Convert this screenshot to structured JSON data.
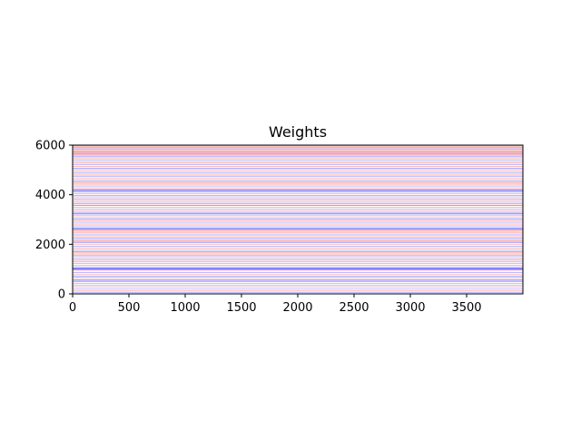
{
  "chart_data": {
    "type": "heatmap",
    "title": "Weights",
    "xlabel": "",
    "ylabel": "",
    "xlim": [
      0,
      4000
    ],
    "ylim": [
      6000,
      0
    ],
    "x_ticks": [
      0,
      500,
      1000,
      1500,
      2000,
      2500,
      3000,
      3500
    ],
    "y_ticks": [
      0,
      2000,
      4000,
      6000
    ],
    "colormap": "bwr",
    "colors": {
      "positive": "#ff0000",
      "negative": "#0000ff",
      "zero": "#ffffff"
    },
    "grid": false,
    "bands": [
      {
        "y": 60,
        "value": -0.3
      },
      {
        "y": 130,
        "value": 0.25
      },
      {
        "y": 200,
        "value": -0.2
      },
      {
        "y": 270,
        "value": 0.2
      },
      {
        "y": 340,
        "value": -0.25
      },
      {
        "y": 420,
        "value": 0.3
      },
      {
        "y": 500,
        "value": -0.35
      },
      {
        "y": 560,
        "value": -0.45
      },
      {
        "y": 640,
        "value": 0.2
      },
      {
        "y": 700,
        "value": -0.4
      },
      {
        "y": 780,
        "value": 0.25
      },
      {
        "y": 860,
        "value": -0.3
      },
      {
        "y": 940,
        "value": 0.2
      },
      {
        "y": 1000,
        "value": -0.8
      },
      {
        "y": 1060,
        "value": -0.5
      },
      {
        "y": 1150,
        "value": 0.3
      },
      {
        "y": 1230,
        "value": -0.25
      },
      {
        "y": 1310,
        "value": 0.35
      },
      {
        "y": 1390,
        "value": -0.3
      },
      {
        "y": 1460,
        "value": 0.25
      },
      {
        "y": 1540,
        "value": -0.35
      },
      {
        "y": 1610,
        "value": 0.3
      },
      {
        "y": 1690,
        "value": 0.55
      },
      {
        "y": 1760,
        "value": -0.25
      },
      {
        "y": 1840,
        "value": 0.3
      },
      {
        "y": 1920,
        "value": -0.3
      },
      {
        "y": 2000,
        "value": 0.25
      },
      {
        "y": 2080,
        "value": -0.45
      },
      {
        "y": 2150,
        "value": 0.4
      },
      {
        "y": 2230,
        "value": -0.35
      },
      {
        "y": 2300,
        "value": 0.3
      },
      {
        "y": 2380,
        "value": -0.3
      },
      {
        "y": 2460,
        "value": 0.35
      },
      {
        "y": 2540,
        "value": 0.45
      },
      {
        "y": 2620,
        "value": -0.75
      },
      {
        "y": 2700,
        "value": -0.3
      },
      {
        "y": 2780,
        "value": 0.3
      },
      {
        "y": 2860,
        "value": -0.25
      },
      {
        "y": 2940,
        "value": 0.35
      },
      {
        "y": 3020,
        "value": -0.4
      },
      {
        "y": 3100,
        "value": 0.25
      },
      {
        "y": 3180,
        "value": -0.3
      },
      {
        "y": 3250,
        "value": -0.55
      },
      {
        "y": 3330,
        "value": 0.3
      },
      {
        "y": 3410,
        "value": -0.25
      },
      {
        "y": 3490,
        "value": 0.3
      },
      {
        "y": 3570,
        "value": 0.5
      },
      {
        "y": 3650,
        "value": -0.35
      },
      {
        "y": 3730,
        "value": 0.3
      },
      {
        "y": 3810,
        "value": -0.3
      },
      {
        "y": 3880,
        "value": 0.25
      },
      {
        "y": 3960,
        "value": -0.35
      },
      {
        "y": 4040,
        "value": 0.3
      },
      {
        "y": 4120,
        "value": -0.45
      },
      {
        "y": 4190,
        "value": -0.65
      },
      {
        "y": 4270,
        "value": 0.3
      },
      {
        "y": 4350,
        "value": -0.25
      },
      {
        "y": 4430,
        "value": 0.35
      },
      {
        "y": 4510,
        "value": 0.5
      },
      {
        "y": 4590,
        "value": -0.3
      },
      {
        "y": 4670,
        "value": 0.25
      },
      {
        "y": 4750,
        "value": -0.35
      },
      {
        "y": 4830,
        "value": 0.3
      },
      {
        "y": 4900,
        "value": -0.3
      },
      {
        "y": 4980,
        "value": 0.25
      },
      {
        "y": 5060,
        "value": -0.4
      },
      {
        "y": 5140,
        "value": 0.3
      },
      {
        "y": 5220,
        "value": -0.3
      },
      {
        "y": 5300,
        "value": 0.35
      },
      {
        "y": 5380,
        "value": -0.25
      },
      {
        "y": 5450,
        "value": 0.3
      },
      {
        "y": 5530,
        "value": -0.35
      },
      {
        "y": 5600,
        "value": 0.45
      },
      {
        "y": 5660,
        "value": -0.4
      },
      {
        "y": 5720,
        "value": 0.5
      },
      {
        "y": 5780,
        "value": 0.4
      },
      {
        "y": 5840,
        "value": -0.3
      },
      {
        "y": 5900,
        "value": 0.45
      },
      {
        "y": 5960,
        "value": 0.35
      }
    ]
  }
}
